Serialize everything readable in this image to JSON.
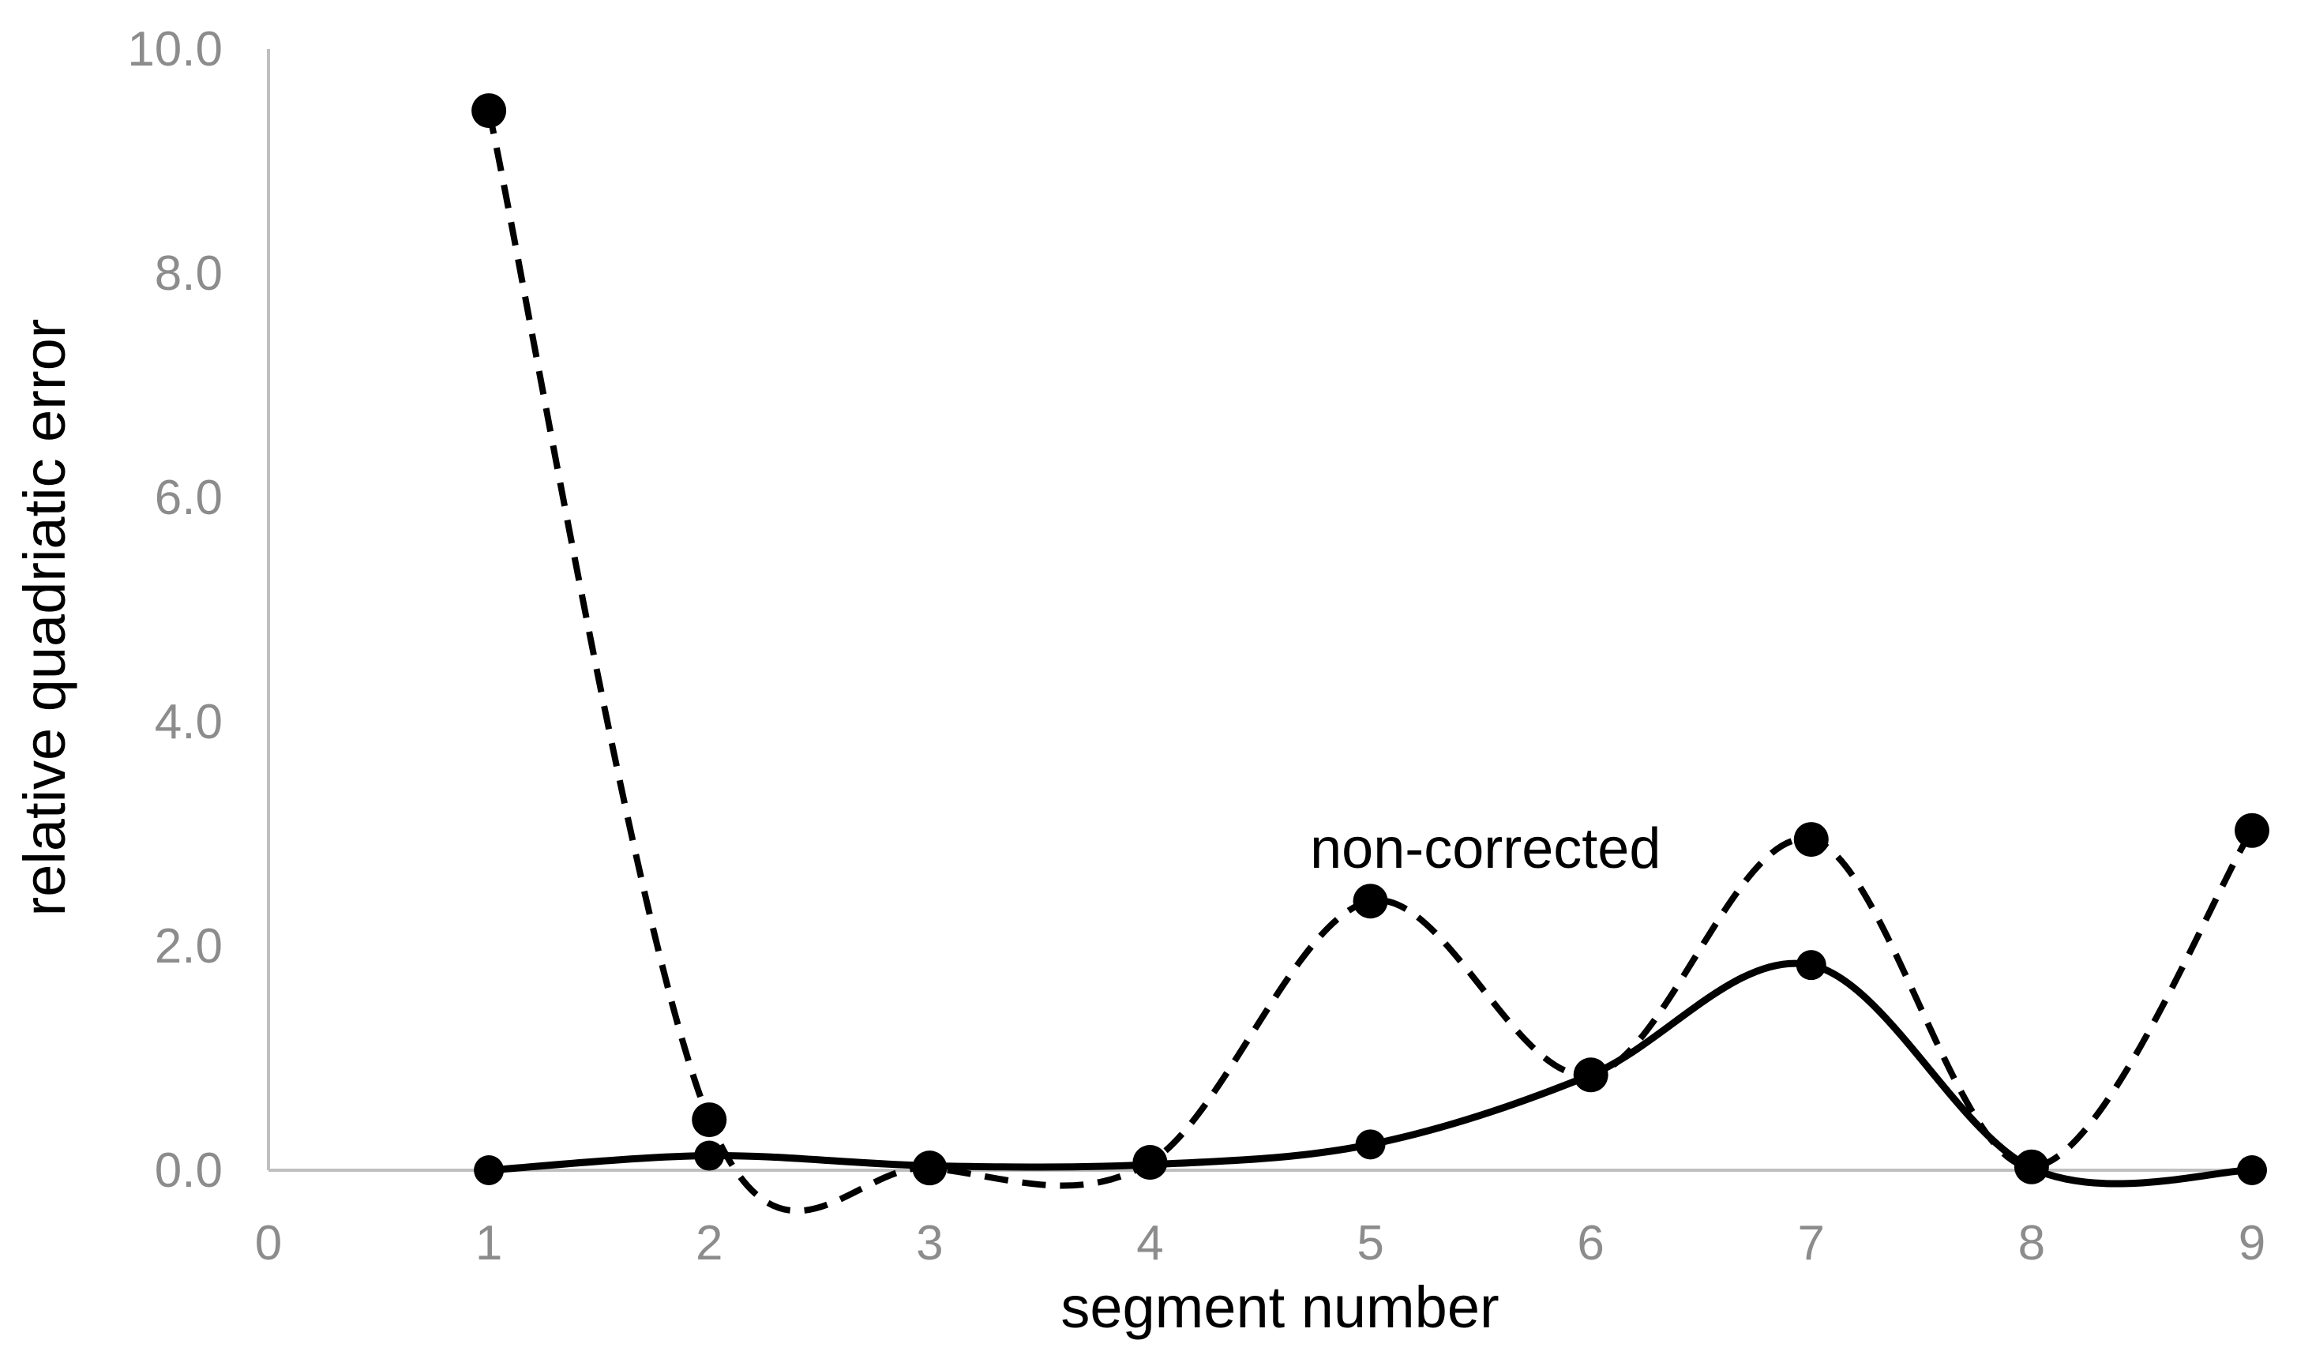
{
  "chart_data": {
    "type": "line",
    "title": "",
    "xlabel": "segment number",
    "ylabel": "relative quadriatic error",
    "xlim": [
      0,
      9
    ],
    "ylim": [
      0,
      10
    ],
    "x_ticks": [
      "0",
      "1",
      "2",
      "3",
      "4",
      "5",
      "6",
      "7",
      "8",
      "9"
    ],
    "y_ticks": [
      "0.0",
      "2.0",
      "4.0",
      "6.0",
      "8.0",
      "10.0"
    ],
    "grid": false,
    "legend": "none",
    "smooth": true,
    "x": [
      1,
      2,
      3,
      4,
      5,
      6,
      7,
      8,
      9
    ],
    "series": [
      {
        "style": "dashed",
        "color": "#000000",
        "values": [
          9.45,
          0.45,
          0.02,
          0.07,
          2.4,
          0.85,
          2.95,
          0.03,
          3.03
        ]
      },
      {
        "style": "solid",
        "color": "#000000",
        "values": [
          0.0,
          0.13,
          0.04,
          0.05,
          0.23,
          0.85,
          1.83,
          0.02,
          0.0
        ]
      }
    ],
    "annotations": [
      {
        "text": "non-corrected",
        "x": 4.78,
        "y": 2.88
      }
    ],
    "colors": {
      "axis": "#bfbfbf",
      "tick_text": "#8c8c8c",
      "series": "#000000"
    }
  }
}
